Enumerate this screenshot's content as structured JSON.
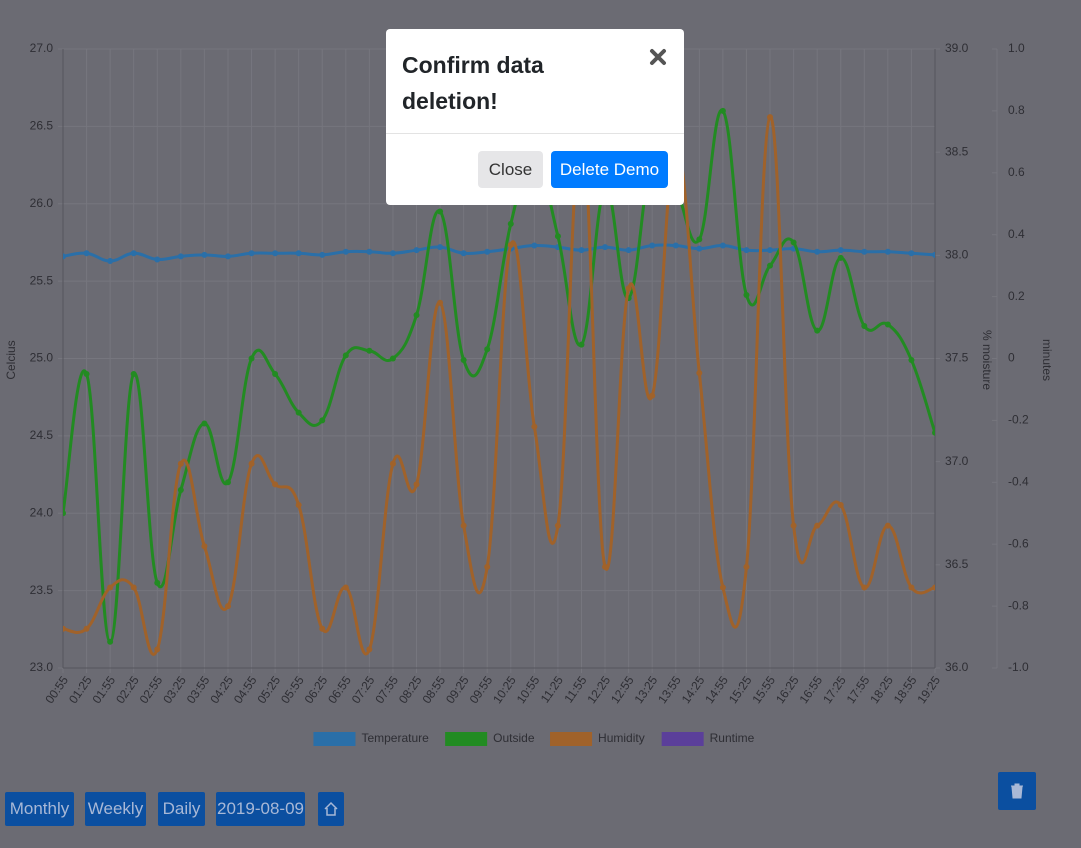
{
  "chart_data": {
    "type": "line",
    "categories": [
      "00:55",
      "01:25",
      "01:55",
      "02:25",
      "02:55",
      "03:25",
      "03:55",
      "04:25",
      "04:55",
      "05:25",
      "05:55",
      "06:25",
      "06:55",
      "07:25",
      "07:55",
      "08:25",
      "08:55",
      "09:25",
      "09:55",
      "10:25",
      "10:55",
      "11:25",
      "11:55",
      "12:25",
      "12:55",
      "13:25",
      "13:55",
      "14:25",
      "14:55",
      "15:25",
      "15:55",
      "16:25",
      "16:55",
      "17:25",
      "17:55",
      "18:25",
      "18:55",
      "19:25"
    ],
    "y_label": "Celcius",
    "ylim": [
      23,
      27
    ],
    "yticks": [
      {
        "value": 23,
        "label": "23.0"
      },
      23.5,
      {
        "value": 24,
        "label": "24.0"
      },
      24.5,
      {
        "value": 25,
        "label": "25.0"
      },
      25.5,
      {
        "value": 26,
        "label": "26.0"
      },
      26.5,
      {
        "value": 27,
        "label": "27.0"
      }
    ],
    "y2_label": "% moisture",
    "y2lim": [
      36,
      39
    ],
    "y2ticks": [
      {
        "value": 36,
        "label": "36.0"
      },
      36.5,
      {
        "value": 37,
        "label": "37.0"
      },
      37.5,
      {
        "value": 38,
        "label": "38.0"
      },
      38.5,
      {
        "value": 39,
        "label": "39.0"
      }
    ],
    "y3_label": "minutes",
    "y3lim": [
      -1,
      1
    ],
    "y3ticks": [
      {
        "value": -1,
        "label": "-1.0"
      },
      -0.8,
      -0.6,
      -0.4,
      -0.2,
      0,
      0.2,
      0.4,
      0.6,
      0.8,
      {
        "value": 1,
        "label": "1.0"
      }
    ],
    "grid": true,
    "legend": "bottom",
    "series": [
      {
        "name": "Temperature",
        "color": "#2a6fa8",
        "axis": "y",
        "values": [
          25.66,
          25.68,
          25.63,
          25.68,
          25.64,
          25.66,
          25.67,
          25.66,
          25.68,
          25.68,
          25.68,
          25.67,
          25.69,
          25.69,
          25.68,
          25.7,
          25.72,
          25.68,
          25.69,
          25.71,
          25.73,
          25.72,
          25.7,
          25.72,
          25.7,
          25.73,
          25.73,
          25.71,
          25.73,
          25.7,
          25.7,
          25.71,
          25.69,
          25.7,
          25.69,
          25.69,
          25.68,
          25.67
        ]
      },
      {
        "name": "Outside",
        "color": "#228b22",
        "axis": "y",
        "values": [
          24.0,
          24.9,
          23.17,
          24.9,
          23.55,
          24.15,
          24.58,
          24.2,
          25.0,
          24.9,
          24.65,
          24.6,
          25.02,
          25.05,
          25.0,
          25.28,
          25.95,
          24.99,
          25.06,
          25.87,
          26.3,
          25.79,
          25.09,
          26.1,
          25.39,
          26.3,
          26.1,
          25.77,
          26.6,
          25.41,
          25.6,
          25.75,
          25.18,
          25.65,
          25.21,
          25.22,
          24.99,
          24.52
        ]
      },
      {
        "name": "Humidity",
        "color": "#a0622a",
        "axis": "y2",
        "values": [
          36.19,
          36.19,
          36.39,
          36.39,
          36.09,
          36.99,
          36.59,
          36.3,
          36.99,
          36.89,
          36.79,
          36.19,
          36.39,
          36.09,
          36.99,
          36.89,
          37.77,
          36.69,
          36.49,
          38.05,
          37.17,
          36.69,
          38.6,
          36.49,
          37.84,
          37.32,
          38.53,
          37.43,
          36.39,
          36.49,
          38.67,
          36.69,
          36.69,
          36.79,
          36.39,
          36.69,
          36.39,
          36.39
        ]
      },
      {
        "name": "Runtime",
        "color": "#5b3f9a",
        "axis": "y3",
        "values": [
          null,
          null,
          null,
          null,
          null,
          null,
          null,
          null,
          null,
          null,
          null,
          null,
          null,
          null,
          null,
          null,
          null,
          null,
          null,
          null,
          null,
          null,
          null,
          null,
          null,
          null,
          null,
          null,
          null,
          null,
          null,
          null,
          null,
          null,
          null,
          null,
          null,
          null
        ]
      }
    ]
  },
  "modal": {
    "title": "Confirm data deletion!",
    "close_button": "Close",
    "confirm_button": "Delete Demo"
  },
  "controls": [
    "Monthly",
    "Weekly",
    "Daily",
    "2019-08-09"
  ]
}
